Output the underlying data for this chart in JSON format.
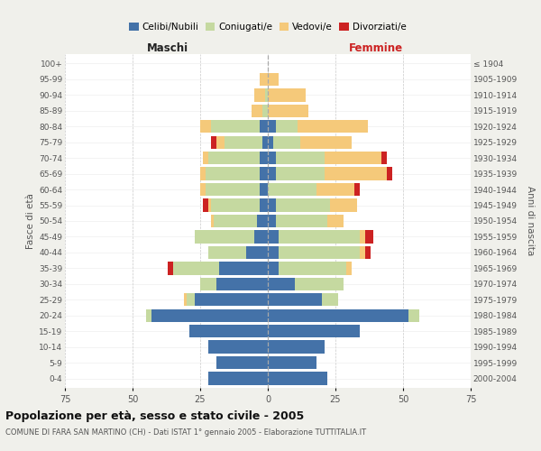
{
  "age_groups": [
    "0-4",
    "5-9",
    "10-14",
    "15-19",
    "20-24",
    "25-29",
    "30-34",
    "35-39",
    "40-44",
    "45-49",
    "50-54",
    "55-59",
    "60-64",
    "65-69",
    "70-74",
    "75-79",
    "80-84",
    "85-89",
    "90-94",
    "95-99",
    "100+"
  ],
  "birth_years": [
    "2000-2004",
    "1995-1999",
    "1990-1994",
    "1985-1989",
    "1980-1984",
    "1975-1979",
    "1970-1974",
    "1965-1969",
    "1960-1964",
    "1955-1959",
    "1950-1954",
    "1945-1949",
    "1940-1944",
    "1935-1939",
    "1930-1934",
    "1925-1929",
    "1920-1924",
    "1915-1919",
    "1910-1914",
    "1905-1909",
    "≤ 1904"
  ],
  "colors": {
    "celibi": "#4472a8",
    "coniugati": "#c5d9a0",
    "vedovi": "#f5c97a",
    "divorziati": "#cc2222"
  },
  "legend_colors": {
    "Celibi/Nubili": "#4472a8",
    "Coniugati/e": "#c5d9a0",
    "Vedovi/e": "#f5c97a",
    "Divorziati/e": "#cc2222"
  },
  "males": {
    "celibi": [
      22,
      19,
      22,
      29,
      43,
      27,
      19,
      18,
      8,
      5,
      4,
      3,
      3,
      3,
      3,
      2,
      3,
      0,
      0,
      0,
      0
    ],
    "coniugati": [
      0,
      0,
      0,
      0,
      2,
      3,
      6,
      17,
      14,
      22,
      16,
      18,
      20,
      20,
      19,
      14,
      18,
      2,
      1,
      0,
      0
    ],
    "vedovi": [
      0,
      0,
      0,
      0,
      0,
      1,
      0,
      0,
      0,
      0,
      1,
      1,
      2,
      2,
      2,
      3,
      4,
      4,
      4,
      3,
      0
    ],
    "divorziati": [
      0,
      0,
      0,
      0,
      0,
      0,
      0,
      2,
      0,
      0,
      0,
      2,
      0,
      0,
      0,
      2,
      0,
      0,
      0,
      0,
      0
    ]
  },
  "females": {
    "nubili": [
      22,
      18,
      21,
      34,
      52,
      20,
      10,
      4,
      4,
      4,
      3,
      3,
      0,
      3,
      3,
      2,
      3,
      0,
      0,
      0,
      0
    ],
    "coniugate": [
      0,
      0,
      0,
      0,
      4,
      6,
      18,
      25,
      30,
      30,
      19,
      20,
      18,
      18,
      18,
      10,
      8,
      0,
      0,
      0,
      0
    ],
    "vedove": [
      0,
      0,
      0,
      0,
      0,
      0,
      0,
      2,
      2,
      2,
      6,
      10,
      14,
      23,
      21,
      19,
      26,
      15,
      14,
      4,
      0
    ],
    "divorziate": [
      0,
      0,
      0,
      0,
      0,
      0,
      0,
      0,
      2,
      3,
      0,
      0,
      2,
      2,
      2,
      0,
      0,
      0,
      0,
      0,
      0
    ]
  },
  "xlim": 75,
  "title": "Popolazione per età, sesso e stato civile - 2005",
  "subtitle": "COMUNE DI FARA SAN MARTINO (CH) - Dati ISTAT 1° gennaio 2005 - Elaborazione TUTTITALIA.IT",
  "xlabel_left": "Maschi",
  "xlabel_right": "Femmine",
  "ylabel_left": "Fasce di età",
  "ylabel_right": "Anni di nascita",
  "bg_color": "#f0f0eb",
  "plot_bg": "#ffffff"
}
